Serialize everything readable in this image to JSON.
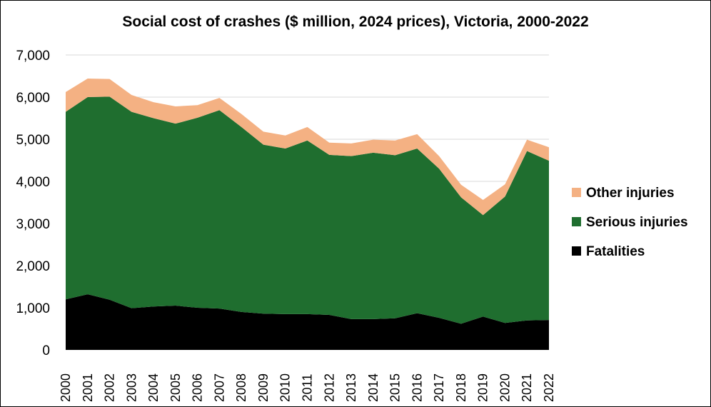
{
  "chart_data": {
    "type": "area",
    "stacked": true,
    "title": "Social cost of crashes ($ million, 2024 prices), Victoria, 2000-2022",
    "xlabel": "",
    "ylabel": "",
    "ylim": [
      0,
      7000
    ],
    "y_ticks": [
      "0",
      "1,000",
      "2,000",
      "3,000",
      "4,000",
      "5,000",
      "6,000",
      "7,000"
    ],
    "y_tick_values": [
      0,
      1000,
      2000,
      3000,
      4000,
      5000,
      6000,
      7000
    ],
    "categories": [
      "2000",
      "2001",
      "2002",
      "2003",
      "2004",
      "2005",
      "2006",
      "2007",
      "2008",
      "2009",
      "2010",
      "2011",
      "2012",
      "2013",
      "2014",
      "2015",
      "2016",
      "2017",
      "2018",
      "2019",
      "2020",
      "2021",
      "2022"
    ],
    "grid": true,
    "legend_position": "right",
    "series": [
      {
        "name": "Fatalities",
        "color": "#000000",
        "values": [
          1200,
          1320,
          1190,
          990,
          1030,
          1050,
          1000,
          980,
          900,
          860,
          850,
          850,
          830,
          730,
          730,
          750,
          870,
          760,
          620,
          790,
          640,
          700,
          710
        ]
      },
      {
        "name": "Serious injuries",
        "color": "#1f6e2f",
        "values": [
          4450,
          4680,
          4820,
          4660,
          4470,
          4320,
          4510,
          4710,
          4390,
          4010,
          3930,
          4120,
          3800,
          3870,
          3950,
          3870,
          3910,
          3540,
          3000,
          2410,
          3000,
          4020,
          3780
        ]
      },
      {
        "name": "Other injuries",
        "color": "#f4b183",
        "values": [
          470,
          440,
          420,
          400,
          380,
          410,
          300,
          290,
          310,
          310,
          310,
          320,
          290,
          300,
          310,
          350,
          340,
          300,
          300,
          360,
          290,
          270,
          320
        ]
      }
    ]
  }
}
